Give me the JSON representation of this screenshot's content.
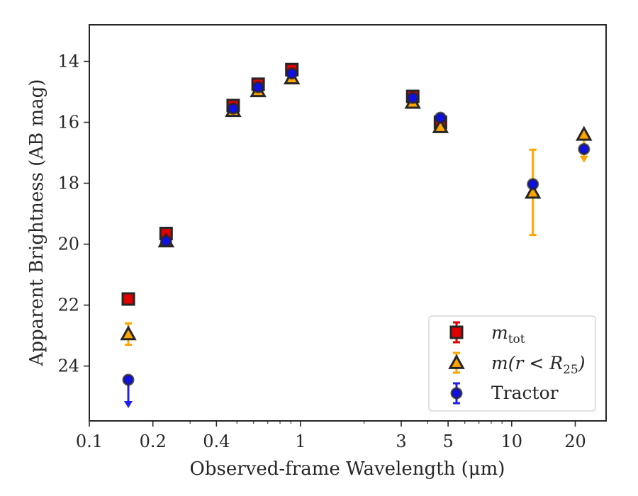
{
  "chart_data": {
    "type": "scatter",
    "xscale": "log",
    "xlim": [
      0.1,
      28
    ],
    "ylim": [
      25.8,
      12.8
    ],
    "y_inverted": true,
    "xlabel": "Observed-frame Wavelength (μm)",
    "ylabel": "Apparent Brightness (AB mag)",
    "xticks": [
      0.1,
      0.2,
      0.4,
      1,
      3,
      5,
      10,
      20
    ],
    "xtick_labels": [
      "0.1",
      "0.2",
      "0.4",
      "1",
      "3",
      "5",
      "10",
      "20"
    ],
    "yticks": [
      14,
      16,
      18,
      20,
      22,
      24
    ],
    "ytick_labels": [
      "14",
      "16",
      "18",
      "20",
      "22",
      "24"
    ],
    "legend_placement": "lower-right",
    "grid": false,
    "series": [
      {
        "name": "m_tot",
        "legend_label_main": "m",
        "legend_label_sub": "tot",
        "marker": "square",
        "color": "#e00000",
        "edgecolor": "#262626",
        "errcolor": "#e00000",
        "points": [
          {
            "x": 0.153,
            "y": 21.8,
            "err": 0.05
          },
          {
            "x": 0.231,
            "y": 19.65,
            "err": 0.05
          },
          {
            "x": 0.48,
            "y": 15.45,
            "err": 0.05
          },
          {
            "x": 0.63,
            "y": 14.75,
            "err": 0.05
          },
          {
            "x": 0.91,
            "y": 14.27,
            "err": 0.05
          },
          {
            "x": 3.4,
            "y": 15.15,
            "err": 0.05
          },
          {
            "x": 4.6,
            "y": 16.0,
            "err": 0.25
          }
        ]
      },
      {
        "name": "m(r < R25)",
        "legend_label_main": "m(r < R",
        "legend_label_sub": "25",
        "legend_label_end": ")",
        "marker": "triangle",
        "color": "#ffa500",
        "edgecolor": "#262626",
        "errcolor": "#ffa500",
        "points": [
          {
            "x": 0.153,
            "y": 22.95,
            "err": 0.35
          },
          {
            "x": 0.231,
            "y": 19.9,
            "err": 0.05
          },
          {
            "x": 0.48,
            "y": 15.62,
            "err": 0.05
          },
          {
            "x": 0.63,
            "y": 14.97,
            "err": 0.05
          },
          {
            "x": 0.91,
            "y": 14.55,
            "err": 0.05
          },
          {
            "x": 3.4,
            "y": 15.35,
            "err": 0.05
          },
          {
            "x": 4.6,
            "y": 16.15,
            "err": 0.05
          },
          {
            "x": 12.6,
            "y": 18.3,
            "err": 1.4
          },
          {
            "x": 22.0,
            "y": 16.4,
            "err": 0.05,
            "upper_limit": true
          }
        ]
      },
      {
        "name": "Tractor",
        "marker": "circle",
        "color": "#1010e0",
        "edgecolor": "#262626",
        "errcolor": "#2020ee",
        "points": [
          {
            "x": 0.153,
            "y": 24.45,
            "err": 0.05,
            "upper_limit": true
          },
          {
            "x": 0.231,
            "y": 19.9,
            "err": 0.05
          },
          {
            "x": 0.48,
            "y": 15.55,
            "err": 0.05
          },
          {
            "x": 0.63,
            "y": 14.85,
            "err": 0.05
          },
          {
            "x": 0.91,
            "y": 14.4,
            "err": 0.05
          },
          {
            "x": 3.4,
            "y": 15.2,
            "err": 0.05
          },
          {
            "x": 4.6,
            "y": 15.85,
            "err": 0.05
          },
          {
            "x": 12.6,
            "y": 18.03,
            "err": 0.05
          },
          {
            "x": 22.0,
            "y": 16.88,
            "err": 0.05
          }
        ]
      }
    ]
  }
}
